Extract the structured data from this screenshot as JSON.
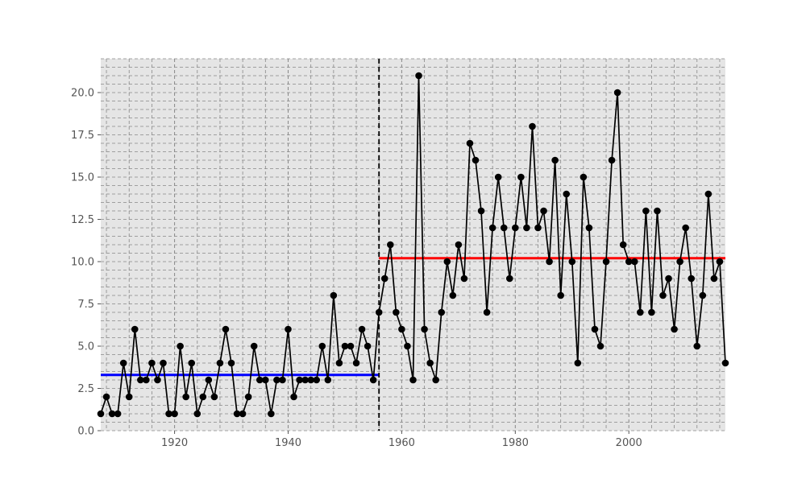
{
  "chart_data": {
    "type": "line",
    "title": "",
    "xlabel": "",
    "ylabel": "",
    "xlim": [
      1907,
      2017
    ],
    "ylim": [
      0,
      22
    ],
    "xticks": [
      1920,
      1940,
      1960,
      1980,
      2000
    ],
    "yticks": [
      0.0,
      2.5,
      5.0,
      7.5,
      10.0,
      12.5,
      15.0,
      17.5,
      20.0
    ],
    "ytick_labels": [
      "0.0",
      "2.5",
      "5.0",
      "7.5",
      "10.0",
      "12.5",
      "15.0",
      "17.5",
      "20.0"
    ],
    "grid": true,
    "background": "#e5e5e5",
    "series": [
      {
        "color": "#000000",
        "marker": "circle",
        "x": [
          1907,
          1908,
          1909,
          1910,
          1911,
          1912,
          1913,
          1914,
          1915,
          1916,
          1917,
          1918,
          1919,
          1920,
          1921,
          1922,
          1923,
          1924,
          1925,
          1926,
          1927,
          1928,
          1929,
          1930,
          1931,
          1932,
          1933,
          1934,
          1935,
          1936,
          1937,
          1938,
          1939,
          1940,
          1941,
          1942,
          1943,
          1944,
          1945,
          1946,
          1947,
          1948,
          1949,
          1950,
          1951,
          1952,
          1953,
          1954,
          1955,
          1956,
          1957,
          1958,
          1959,
          1960,
          1961,
          1962,
          1963,
          1964,
          1965,
          1966,
          1967,
          1968,
          1969,
          1970,
          1971,
          1972,
          1973,
          1974,
          1975,
          1976,
          1977,
          1978,
          1979,
          1980,
          1981,
          1982,
          1983,
          1984,
          1985,
          1986,
          1987,
          1988,
          1989,
          1990,
          1991,
          1992,
          1993,
          1994,
          1995,
          1996,
          1997,
          1998,
          1999,
          2000,
          2001,
          2002,
          2003,
          2004,
          2005,
          2006,
          2007,
          2008,
          2009,
          2010,
          2011,
          2012,
          2013,
          2014,
          2015,
          2016,
          2017
        ],
        "y": [
          1,
          2,
          1,
          1,
          4,
          2,
          6,
          3,
          3,
          4,
          3,
          4,
          1,
          1,
          5,
          2,
          4,
          1,
          2,
          3,
          2,
          4,
          6,
          4,
          1,
          1,
          2,
          5,
          3,
          3,
          1,
          3,
          3,
          6,
          2,
          3,
          3,
          3,
          3,
          5,
          3,
          8,
          4,
          5,
          5,
          4,
          6,
          5,
          3,
          7,
          9,
          11,
          7,
          6,
          5,
          3,
          21,
          6,
          4,
          3,
          7,
          10,
          8,
          11,
          9,
          17,
          16,
          13,
          7,
          12,
          15,
          12,
          9,
          12,
          15,
          12,
          18,
          12,
          13,
          10,
          16,
          8,
          14,
          10,
          4,
          15,
          12,
          6,
          5,
          10,
          16,
          20,
          11,
          10,
          10,
          7,
          13,
          7,
          13,
          8,
          9,
          6,
          10,
          12,
          9,
          5,
          8,
          14,
          9,
          10,
          4
        ]
      }
    ],
    "mean_lines": [
      {
        "color": "#0000ff",
        "x_start": 1907,
        "x_end": 1956,
        "value": 3.3
      },
      {
        "color": "#ff0000",
        "x_start": 1956,
        "x_end": 2017,
        "value": 10.2
      }
    ],
    "change_point": {
      "x": 1956,
      "color": "#000000",
      "style": "dashed"
    }
  }
}
